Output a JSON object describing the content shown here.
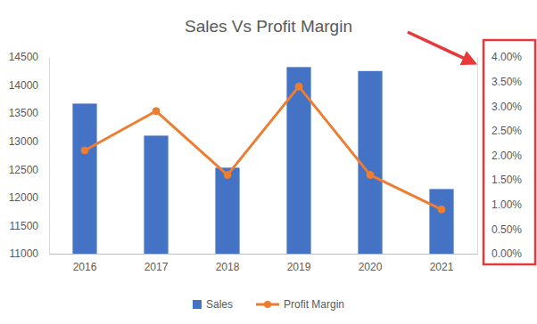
{
  "chart_data": {
    "type": "bar",
    "title": "Sales Vs Profit Margin",
    "categories": [
      "2016",
      "2017",
      "2018",
      "2019",
      "2020",
      "2021"
    ],
    "series": [
      {
        "name": "Sales",
        "type": "bar",
        "color": "#4472c4",
        "values": [
          13670,
          13100,
          12530,
          14320,
          14250,
          12150
        ]
      },
      {
        "name": "Profit Margin",
        "type": "line",
        "color": "#ed7d31",
        "marker": "circle",
        "axis": "y2",
        "values": [
          2.1,
          2.9,
          1.6,
          3.4,
          1.6,
          0.9
        ]
      }
    ],
    "ylim": [
      11000,
      14500
    ],
    "yticks": [
      11000,
      11500,
      12000,
      12500,
      13000,
      13500,
      14000,
      14500
    ],
    "y2lim": [
      0,
      4
    ],
    "y2ticks": [
      {
        "value": 0,
        "label": "0.00%"
      },
      {
        "value": 0.5,
        "label": "0.50%"
      },
      {
        "value": 1,
        "label": "1.00%"
      },
      {
        "value": 1.5,
        "label": "1.50%"
      },
      {
        "value": 2,
        "label": "2.00%"
      },
      {
        "value": 2.5,
        "label": "2.50%"
      },
      {
        "value": 3,
        "label": "3.00%"
      },
      {
        "value": 3.5,
        "label": "3.50%"
      },
      {
        "value": 4,
        "label": "4.00%"
      }
    ],
    "grid": false,
    "legend": "bottom"
  }
}
